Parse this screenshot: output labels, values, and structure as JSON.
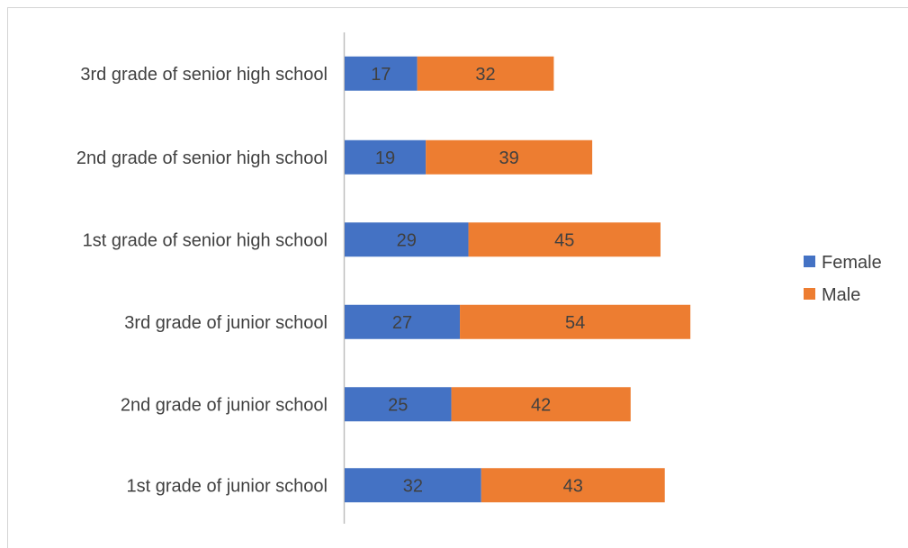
{
  "chart_data": {
    "type": "bar",
    "orientation": "horizontal",
    "stacked": true,
    "title": "",
    "xlabel": "",
    "ylabel": "",
    "categories": [
      "3rd grade of senior high school",
      "2nd grade of senior high school",
      "1st grade of senior high school",
      "3rd grade of junior school",
      "2nd grade of junior school",
      "1st grade of junior school"
    ],
    "series": [
      {
        "name": "Female",
        "color": "#4472C4",
        "values": [
          17,
          19,
          29,
          27,
          25,
          32
        ]
      },
      {
        "name": "Male",
        "color": "#ED7D31",
        "values": [
          32,
          39,
          45,
          54,
          42,
          43
        ]
      }
    ],
    "xlim": [
      0,
      120
    ],
    "grid": false,
    "data_labels": true,
    "legend_position": "right"
  }
}
